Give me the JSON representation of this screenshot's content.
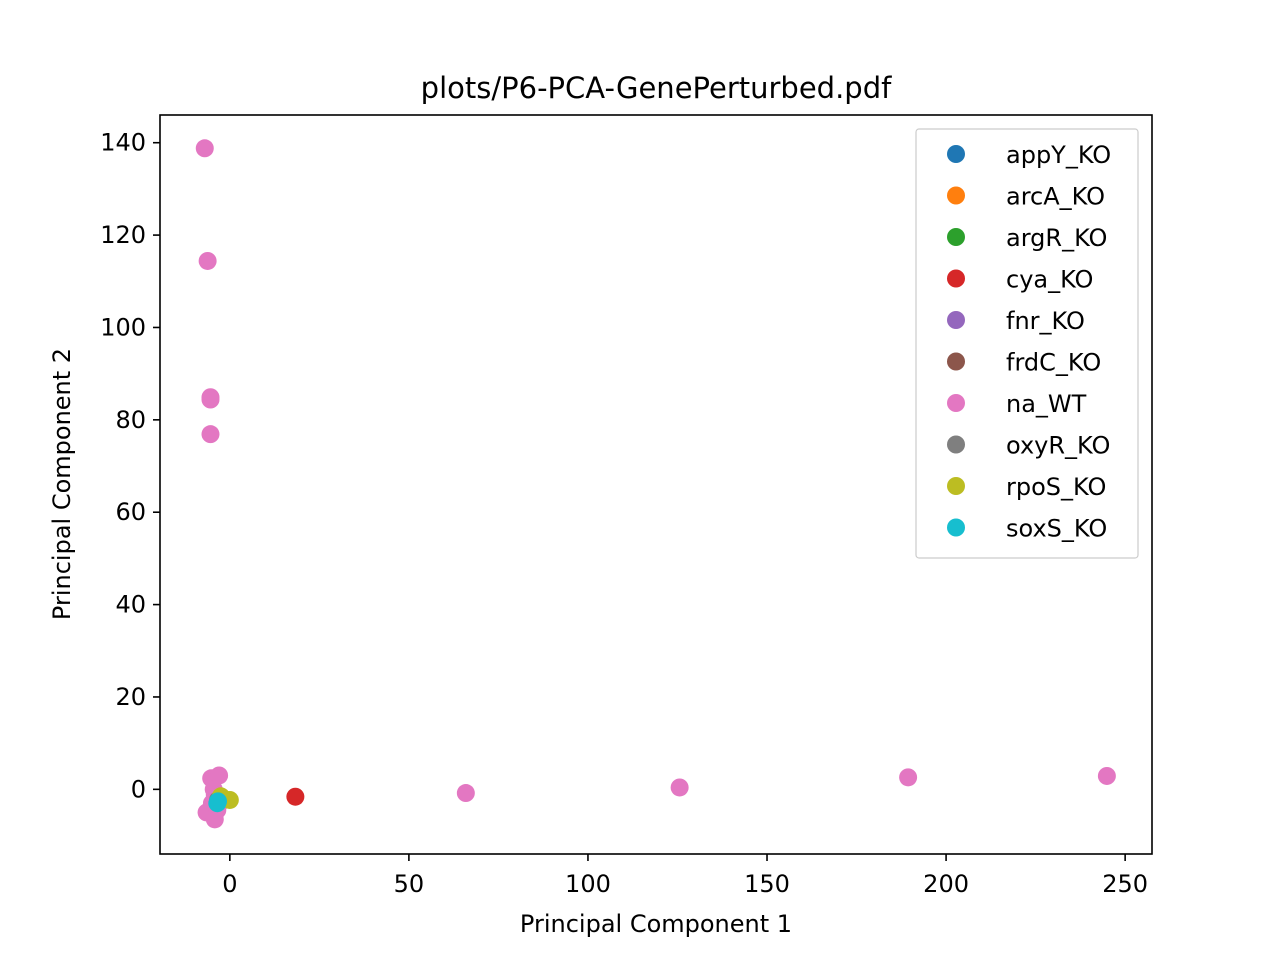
{
  "chart_data": {
    "type": "scatter",
    "title": "plots/P6-PCA-GenePerturbed.pdf",
    "xlabel": "Principal Component 1",
    "ylabel": "Principal Component 2",
    "xlim": [
      -19.5,
      257.5
    ],
    "ylim": [
      -14,
      146
    ],
    "xticks": [
      0,
      50,
      100,
      150,
      200,
      250
    ],
    "yticks": [
      0,
      20,
      40,
      60,
      80,
      100,
      120,
      140
    ],
    "grid": false,
    "legend_position": "top-right",
    "series": [
      {
        "name": "appY_KO",
        "color": "#1f77b4",
        "points": [
          [
            -3.5,
            -2.5
          ],
          [
            -3.0,
            -3.0
          ]
        ]
      },
      {
        "name": "arcA_KO",
        "color": "#ff7f0e",
        "points": [
          [
            -3.5,
            -2.0
          ],
          [
            -2.8,
            -2.5
          ]
        ]
      },
      {
        "name": "argR_KO",
        "color": "#2ca02c",
        "points": [
          [
            -3.2,
            -2.2
          ],
          [
            -2.5,
            -2.6
          ]
        ]
      },
      {
        "name": "cya_KO",
        "color": "#d62728",
        "points": [
          [
            18.3,
            -1.6
          ]
        ]
      },
      {
        "name": "fnr_KO",
        "color": "#9467bd",
        "points": [
          [
            -3.4,
            -2.6
          ]
        ]
      },
      {
        "name": "frdC_KO",
        "color": "#8c564b",
        "points": [
          [
            -3.1,
            -2.4
          ]
        ]
      },
      {
        "name": "na_WT",
        "color": "#e377c2",
        "points": [
          [
            -7.0,
            138.8
          ],
          [
            -6.2,
            114.4
          ],
          [
            -5.4,
            84.9
          ],
          [
            -5.4,
            84.4
          ],
          [
            -5.4,
            76.9
          ],
          [
            -5.2,
            2.4
          ],
          [
            -3.0,
            3.0
          ],
          [
            -4.5,
            0.0
          ],
          [
            -4.2,
            -1.2
          ],
          [
            -5.0,
            -3.0
          ],
          [
            -4.8,
            -4.0
          ],
          [
            -6.5,
            -5.0
          ],
          [
            -4.2,
            -6.5
          ],
          [
            -3.5,
            -4.5
          ],
          [
            -3.0,
            -2.0
          ],
          [
            65.9,
            -0.8
          ],
          [
            125.6,
            0.4
          ],
          [
            189.4,
            2.6
          ],
          [
            244.9,
            2.9
          ]
        ]
      },
      {
        "name": "oxyR_KO",
        "color": "#7f7f7f",
        "points": [
          [
            -3.3,
            -2.3
          ]
        ]
      },
      {
        "name": "rpoS_KO",
        "color": "#bcbd22",
        "points": [
          [
            0.0,
            -2.3
          ],
          [
            -1.8,
            -2.0
          ],
          [
            -2.5,
            -1.5
          ]
        ]
      },
      {
        "name": "soxS_KO",
        "color": "#17becf",
        "points": [
          [
            -3.3,
            -2.6
          ],
          [
            -3.5,
            -3.0
          ]
        ]
      }
    ]
  }
}
